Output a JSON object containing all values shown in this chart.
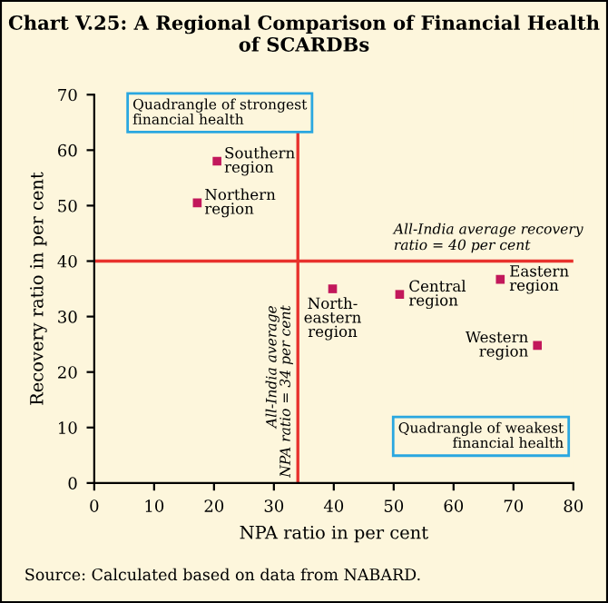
{
  "chart_data": {
    "type": "scatter",
    "title": "Chart V.25: A Regional Comparison of Financial Health of SCARDBs",
    "xlabel": "NPA ratio in per cent",
    "ylabel": "Recovery ratio in per cent",
    "series": [
      {
        "color": "#c2185b",
        "x": [
          20.5,
          17.2,
          39.8,
          51,
          67.8,
          74
        ],
        "values": [
          58,
          50.5,
          35,
          34,
          36.7,
          24.8
        ]
      }
    ],
    "marker": "square",
    "xlim": [
      0,
      80
    ],
    "xticks": [
      0,
      10,
      20,
      30,
      40,
      50,
      60,
      70,
      80
    ],
    "ylim": [
      0,
      70
    ],
    "yticks": [
      0,
      10,
      20,
      30,
      40,
      50,
      60,
      70
    ],
    "grid": false,
    "ref_lines": [
      {
        "axis": "y",
        "value": 40,
        "label": "All-India average recovery ratio = 40 per cent",
        "color": "#e8322d"
      },
      {
        "axis": "x",
        "value": 34,
        "label": "All-India average NPA ratio = 34 per cent",
        "color": "#e8322d"
      }
    ],
    "annotations": [
      {
        "text": "Southern region",
        "x": 20.5,
        "y": 58
      },
      {
        "text": "Northern region",
        "x": 17.2,
        "y": 50.5
      },
      {
        "text": "North-eastern region",
        "x": 39.8,
        "y": 35
      },
      {
        "text": "Central region",
        "x": 51,
        "y": 34
      },
      {
        "text": "Eastern region",
        "x": 67.8,
        "y": 36.7
      },
      {
        "text": "Western region",
        "x": 74,
        "y": 24.8
      },
      "Quadrangle of strongest financial health",
      "Quadrangle of weakest financial health",
      "Source: Calculated based on data from NABARD."
    ]
  }
}
